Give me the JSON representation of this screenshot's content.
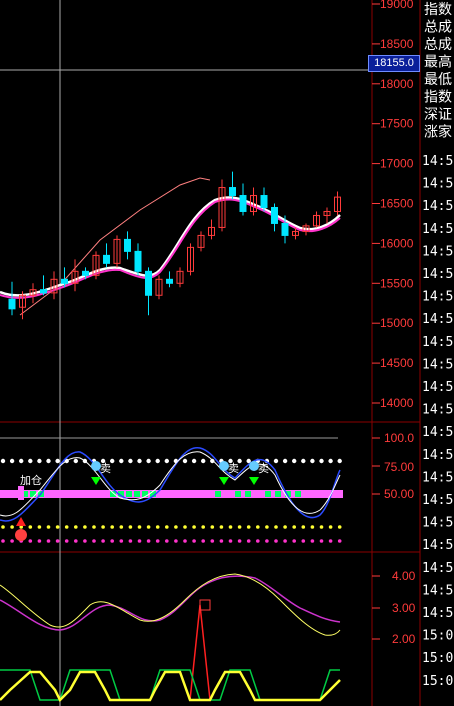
{
  "price_axis_labels": [
    "19000",
    "18500",
    "18000",
    "17500",
    "17000",
    "16500",
    "16000",
    "15500",
    "15000",
    "14500",
    "14000"
  ],
  "price_box_value": "18155.0",
  "indicator1_axis_labels": [
    "100.0",
    "75.00",
    "50.00"
  ],
  "indicator2_axis_labels": [
    "4.00",
    "3.00",
    "2.00"
  ],
  "side_panel_labels": [
    "指数",
    "总成",
    "总成",
    "最高",
    "最低",
    "指数",
    "深证",
    "涨家"
  ],
  "time_labels": [
    "14:5",
    "14:5",
    "14:5",
    "14:5",
    "14:5",
    "14:5",
    "14:5",
    "14:5",
    "14:5",
    "14:5",
    "14:5",
    "14:5",
    "14:5",
    "14:5",
    "14:5",
    "14:5",
    "14:5",
    "14:5",
    "14:5",
    "14:5",
    "14:5",
    "15:0",
    "15:0",
    "15:0"
  ],
  "signal_labels": {
    "add_position": "加仓",
    "sell": "卖"
  },
  "colors": {
    "up": "#ff3b3b",
    "down": "#00e6ff",
    "ma": "#ff33cc",
    "ma2": "#ffffff",
    "grid": "#8b0000",
    "band_pink": "#ff66ff",
    "band_green": "#00ff66"
  },
  "chart_data": {
    "type": "candlestick",
    "ylim": [
      13800,
      19100
    ],
    "candles": [
      {
        "o": 15300,
        "h": 15520,
        "l": 15100,
        "c": 15180
      },
      {
        "o": 15200,
        "h": 15400,
        "l": 15050,
        "c": 15350
      },
      {
        "o": 15350,
        "h": 15500,
        "l": 15250,
        "c": 15420
      },
      {
        "o": 15420,
        "h": 15600,
        "l": 15350,
        "c": 15380
      },
      {
        "o": 15380,
        "h": 15650,
        "l": 15300,
        "c": 15550
      },
      {
        "o": 15550,
        "h": 15700,
        "l": 15450,
        "c": 15500
      },
      {
        "o": 15500,
        "h": 15800,
        "l": 15400,
        "c": 15650
      },
      {
        "o": 15650,
        "h": 15700,
        "l": 15550,
        "c": 15600
      },
      {
        "o": 15600,
        "h": 15900,
        "l": 15550,
        "c": 15850
      },
      {
        "o": 15850,
        "h": 16000,
        "l": 15700,
        "c": 15750
      },
      {
        "o": 15750,
        "h": 16100,
        "l": 15700,
        "c": 16050
      },
      {
        "o": 16050,
        "h": 16150,
        "l": 15800,
        "c": 15900
      },
      {
        "o": 15900,
        "h": 16000,
        "l": 15600,
        "c": 15650
      },
      {
        "o": 15650,
        "h": 15700,
        "l": 15100,
        "c": 15350
      },
      {
        "o": 15350,
        "h": 15600,
        "l": 15300,
        "c": 15550
      },
      {
        "o": 15550,
        "h": 15650,
        "l": 15450,
        "c": 15500
      },
      {
        "o": 15500,
        "h": 15700,
        "l": 15450,
        "c": 15650
      },
      {
        "o": 15650,
        "h": 16000,
        "l": 15600,
        "c": 15950
      },
      {
        "o": 15950,
        "h": 16150,
        "l": 15900,
        "c": 16100
      },
      {
        "o": 16100,
        "h": 16300,
        "l": 16050,
        "c": 16200
      },
      {
        "o": 16200,
        "h": 16800,
        "l": 16150,
        "c": 16700
      },
      {
        "o": 16700,
        "h": 16900,
        "l": 16550,
        "c": 16600
      },
      {
        "o": 16600,
        "h": 16750,
        "l": 16350,
        "c": 16400
      },
      {
        "o": 16400,
        "h": 16700,
        "l": 16350,
        "c": 16600
      },
      {
        "o": 16600,
        "h": 16700,
        "l": 16400,
        "c": 16450
      },
      {
        "o": 16450,
        "h": 16500,
        "l": 16150,
        "c": 16250
      },
      {
        "o": 16250,
        "h": 16350,
        "l": 16000,
        "c": 16100
      },
      {
        "o": 16100,
        "h": 16200,
        "l": 16050,
        "c": 16150
      },
      {
        "o": 16150,
        "h": 16250,
        "l": 16100,
        "c": 16220
      },
      {
        "o": 16220,
        "h": 16400,
        "l": 16200,
        "c": 16350
      },
      {
        "o": 16350,
        "h": 16450,
        "l": 16250,
        "c": 16400
      },
      {
        "o": 16400,
        "h": 16650,
        "l": 16350,
        "c": 16580
      }
    ]
  }
}
